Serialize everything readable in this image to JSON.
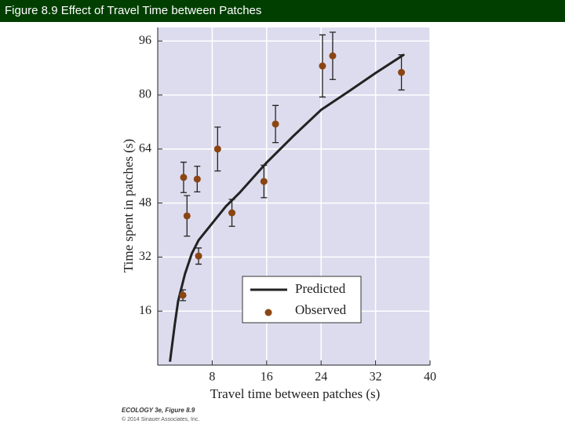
{
  "header": {
    "title": "Figure 8.9  Effect of Travel Time between Patches"
  },
  "chart_data": {
    "type": "scatter",
    "x_label": "Travel time between patches (s)",
    "y_label": "Time spent in patches (s)",
    "xlim": [
      0,
      40
    ],
    "ylim": [
      0,
      100
    ],
    "xticks": [
      8,
      16,
      24,
      32,
      40
    ],
    "yticks": [
      16,
      32,
      48,
      64,
      80,
      96
    ],
    "grid": true,
    "legend": "lower-right",
    "series": [
      {
        "name": "Predicted",
        "type": "line",
        "color": "#222222",
        "x": [
          1.8,
          2.5,
          3,
          4,
          5,
          6,
          8,
          10,
          12,
          16,
          20,
          24,
          28,
          32,
          36.2
        ],
        "values": [
          1,
          12,
          19,
          27,
          33,
          37,
          42,
          47,
          51,
          60,
          68,
          75.6,
          81,
          86.5,
          92
        ]
      },
      {
        "name": "Observed",
        "type": "scatter",
        "color": "#8b4513",
        "x": [
          3.7,
          3.8,
          4.3,
          5.8,
          6.0,
          8.8,
          10.9,
          15.6,
          17.3,
          24.2,
          25.7,
          35.8
        ],
        "values": [
          20.7,
          55.6,
          44.2,
          55.1,
          32.3,
          64,
          45.1,
          54.4,
          71.4,
          88.6,
          91.6,
          86.7
        ],
        "errors": [
          1.6,
          4.5,
          6,
          3.8,
          2.4,
          6.5,
          4,
          4.8,
          5.5,
          9.2,
          7,
          5.2
        ]
      }
    ]
  },
  "credits": {
    "line1": "ECOLOGY 3e, Figure 8.9",
    "line2": "© 2014 Sinauer Associates, Inc."
  }
}
